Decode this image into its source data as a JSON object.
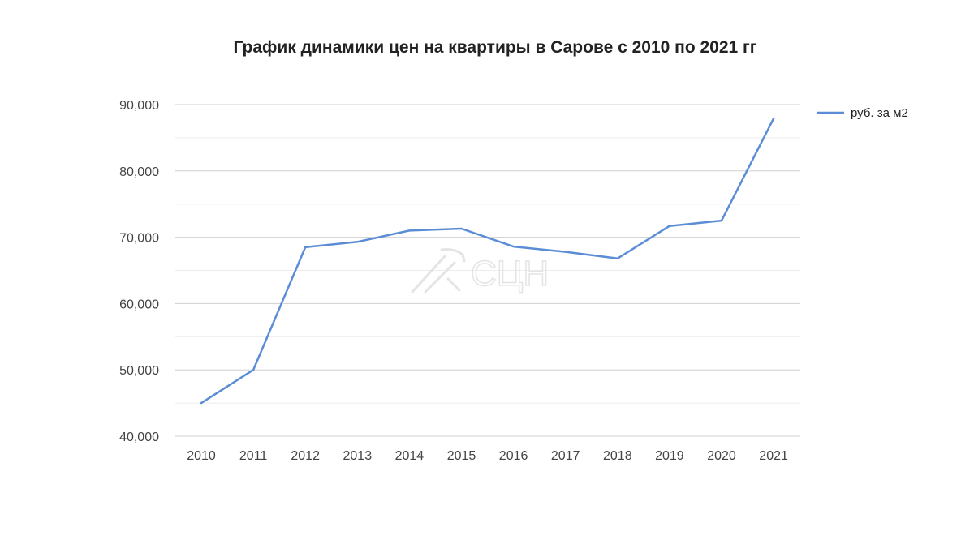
{
  "chart_data": {
    "type": "line",
    "title": "График динамики цен на квартиры в Сарове с 2010 по 2021 гг",
    "xlabel": "",
    "ylabel": "",
    "categories": [
      "2010",
      "2011",
      "2012",
      "2013",
      "2014",
      "2015",
      "2016",
      "2017",
      "2018",
      "2019",
      "2020",
      "2021"
    ],
    "series": [
      {
        "name": "руб. за м2",
        "color": "#5b8dd6",
        "values": [
          45000,
          50000,
          68500,
          69300,
          71000,
          71300,
          68600,
          67800,
          66800,
          71700,
          72500,
          87900
        ]
      }
    ],
    "ylim": [
      40000,
      90000
    ],
    "yticks": [
      "40,000",
      "50,000",
      "60,000",
      "70,000",
      "80,000",
      "90,000"
    ],
    "grid": true,
    "minor_grid": true,
    "legend_position": "right"
  },
  "watermark": {
    "text": "СЦН"
  }
}
